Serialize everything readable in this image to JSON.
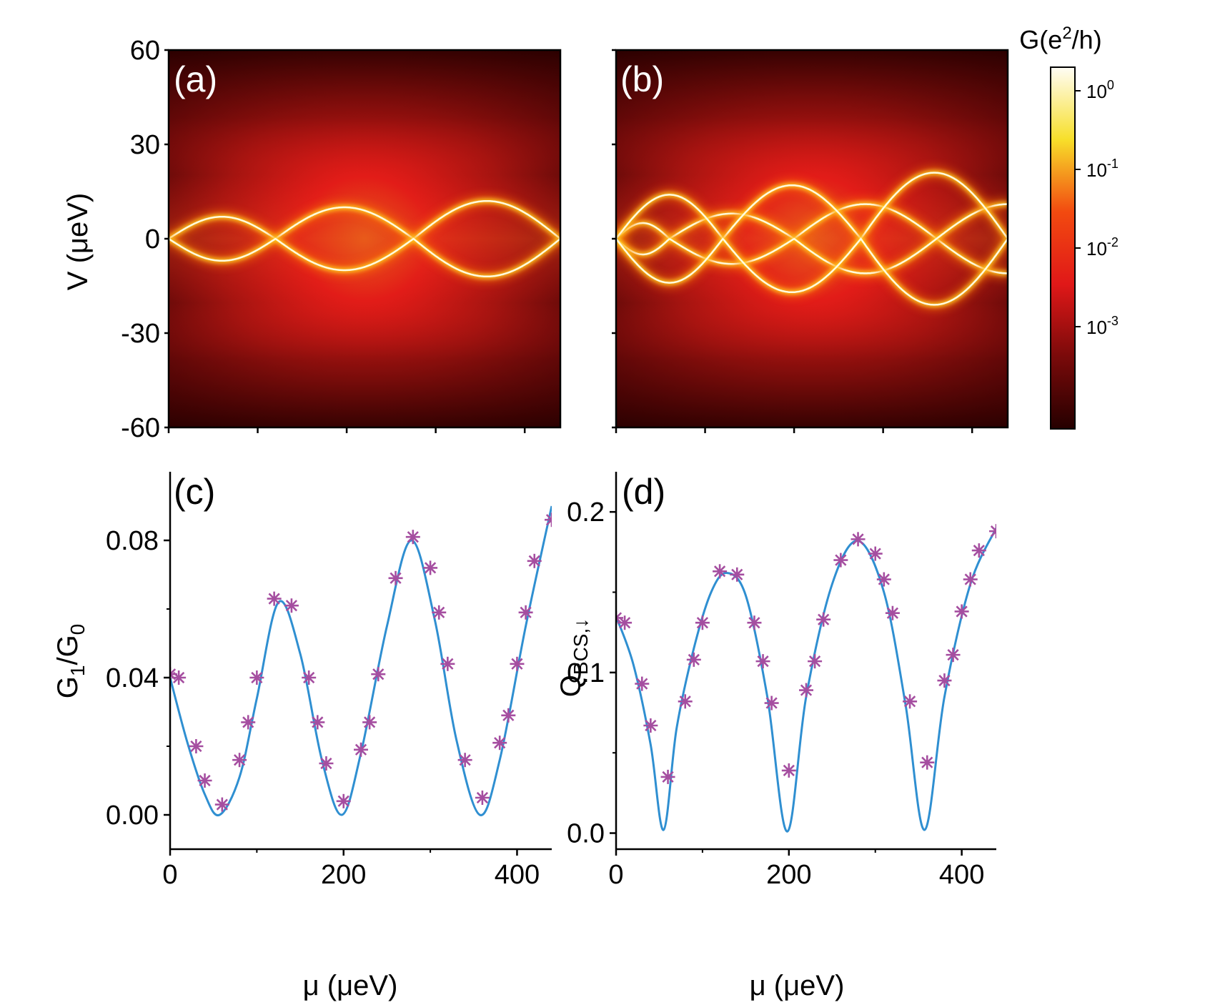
{
  "chart_data": [
    {
      "panel": "(a)",
      "type": "heatmap",
      "xlabel": "",
      "ylabel": "V (μeV)",
      "xlim": [
        0,
        440
      ],
      "ylim": [
        -60,
        60
      ],
      "yticks": [
        "60",
        "30",
        "0",
        "-30",
        "-60"
      ],
      "xtick_values": [
        0,
        100,
        200,
        300,
        400
      ],
      "colorscale": "hot (log)",
      "branches": [
        {
          "name": "",
          "amplitude_uev": [
            7,
            10,
            12
          ],
          "minima_mu": [
            0,
            120,
            275,
            440
          ]
        }
      ]
    },
    {
      "panel": "(b)",
      "type": "heatmap",
      "xlabel": "",
      "ylabel": "",
      "xlim": [
        0,
        440
      ],
      "ylim": [
        -60,
        60
      ],
      "xtick_values": [
        0,
        100,
        200,
        300,
        400
      ],
      "colorscale": "hot (log)",
      "branches": [
        {
          "name": "",
          "amplitude_uev": [
            5,
            8,
            11
          ],
          "minima_mu": [
            0,
            60,
            200,
            360
          ]
        },
        {
          "name": "",
          "amplitude_uev": [
            14,
            17,
            21
          ],
          "minima_mu": [
            0,
            120,
            275,
            440
          ]
        }
      ]
    },
    {
      "panel": "(c)",
      "type": "scatter",
      "xlabel": "μ (μeV)",
      "ylabel": "G1/G0",
      "xlim": [
        0,
        440
      ],
      "ylim": [
        -0.01,
        0.1
      ],
      "xticks": [
        "0",
        "200",
        "400"
      ],
      "yticks": [
        "0.00",
        "0.04",
        "0.08"
      ],
      "series": [
        {
          "name": "",
          "kind": "markers",
          "x": [
            0,
            10,
            30,
            40,
            60,
            80,
            90,
            100,
            120,
            140,
            160,
            170,
            180,
            200,
            220,
            230,
            240,
            260,
            280,
            300,
            310,
            320,
            340,
            360,
            380,
            390,
            400,
            410,
            420,
            440
          ],
          "y": [
            0.041,
            0.04,
            0.02,
            0.01,
            0.003,
            0.016,
            0.027,
            0.04,
            0.063,
            0.061,
            0.04,
            0.027,
            0.015,
            0.004,
            0.019,
            0.027,
            0.041,
            0.069,
            0.081,
            0.072,
            0.059,
            0.044,
            0.016,
            0.005,
            0.021,
            0.029,
            0.044,
            0.059,
            0.074,
            0.086
          ]
        },
        {
          "name": "",
          "kind": "line",
          "x": [
            0,
            20,
            40,
            57,
            80,
            100,
            125,
            150,
            175,
            198,
            220,
            250,
            278,
            305,
            330,
            357,
            380,
            410,
            440
          ],
          "y": [
            0.04,
            0.021,
            0.006,
            0.0,
            0.011,
            0.034,
            0.062,
            0.047,
            0.016,
            0.0,
            0.018,
            0.055,
            0.08,
            0.057,
            0.022,
            0.0,
            0.016,
            0.055,
            0.09
          ]
        }
      ]
    },
    {
      "panel": "(d)",
      "type": "scatter",
      "xlabel": "μ (μeV)",
      "ylabel": "Q_BCS,↓",
      "xlim": [
        0,
        440
      ],
      "ylim": [
        -0.01,
        0.225
      ],
      "xticks": [
        "0",
        "200",
        "400"
      ],
      "yticks": [
        "0.0",
        "0.1",
        "0.2"
      ],
      "series": [
        {
          "name": "",
          "kind": "markers",
          "x": [
            0,
            10,
            30,
            40,
            60,
            80,
            90,
            100,
            120,
            140,
            160,
            170,
            180,
            200,
            220,
            230,
            240,
            260,
            280,
            300,
            310,
            320,
            340,
            360,
            380,
            390,
            400,
            410,
            420,
            440
          ],
          "y": [
            0.134,
            0.131,
            0.093,
            0.067,
            0.035,
            0.082,
            0.108,
            0.131,
            0.163,
            0.161,
            0.131,
            0.107,
            0.081,
            0.039,
            0.089,
            0.107,
            0.133,
            0.17,
            0.183,
            0.174,
            0.158,
            0.137,
            0.082,
            0.044,
            0.095,
            0.111,
            0.138,
            0.158,
            0.176,
            0.188
          ]
        },
        {
          "name": "",
          "kind": "line",
          "x": [
            0,
            20,
            40,
            55,
            70,
            90,
            110,
            128,
            150,
            175,
            198,
            220,
            250,
            280,
            310,
            335,
            357,
            380,
            410,
            440
          ],
          "y": [
            0.135,
            0.105,
            0.055,
            0.002,
            0.065,
            0.115,
            0.15,
            0.162,
            0.148,
            0.085,
            0.001,
            0.085,
            0.155,
            0.182,
            0.15,
            0.08,
            0.002,
            0.085,
            0.155,
            0.19
          ]
        }
      ]
    }
  ],
  "colorbar": {
    "title_base": "G(e",
    "title_exp": "2",
    "title_end": "/h)",
    "tick_base": "10",
    "tick_exponents": [
      "0",
      "-1",
      "-2",
      "-3"
    ],
    "tick_log_values": [
      0,
      -1,
      -2,
      -3
    ],
    "range_log": [
      -4.3,
      0.3
    ]
  },
  "colors": {
    "line": "#2f8fd1",
    "marker": "#a54ea0",
    "panel_label_light": "#ffffff",
    "panel_label_dark": "#000000"
  },
  "labels": {
    "a": "(a)",
    "b": "(b)",
    "c": "(c)",
    "d": "(d)",
    "c_ylabel_G": "G",
    "c_ylabel_sub1": "1",
    "c_ylabel_slash": "/G",
    "c_ylabel_sub0": "0",
    "d_ylabel_Q": "Q",
    "d_ylabel_sub": "BCS,↓"
  }
}
